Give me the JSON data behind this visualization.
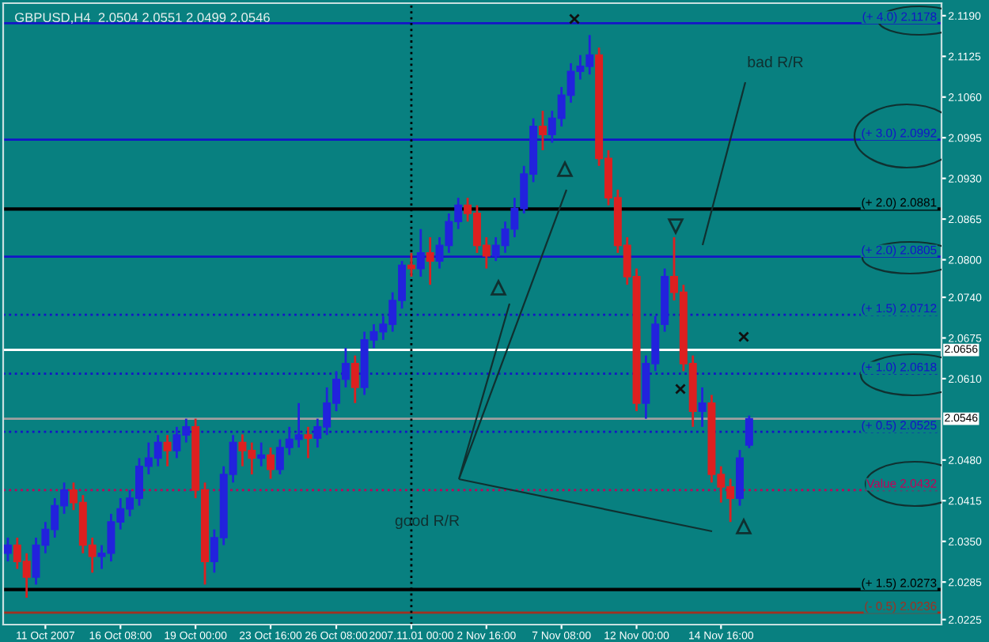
{
  "chart_data": {
    "type": "candlestick",
    "title": "GBPUSD,H4  2.0504 2.0551 2.0499 2.0546",
    "categories": [
      null,
      null,
      null,
      null,
      "11 Oct 2007",
      null,
      null,
      null,
      null,
      null,
      null,
      null,
      "16 Oct 08:00",
      null,
      null,
      null,
      null,
      null,
      null,
      null,
      "19 Oct 00:00",
      null,
      null,
      null,
      null,
      null,
      null,
      null,
      "23 Oct 16:00",
      null,
      null,
      null,
      null,
      null,
      null,
      "26 Oct 08:00",
      null,
      null,
      null,
      null,
      null,
      null,
      null,
      "2007.11.01 00:00",
      null,
      null,
      null,
      null,
      null,
      null,
      null,
      "2 Nov 16:00",
      null,
      null,
      null,
      null,
      null,
      null,
      null,
      "7 Nov 08:00",
      null,
      null,
      null,
      null,
      null,
      null,
      null,
      "12 Nov 00:00",
      null,
      null,
      null,
      null,
      null,
      null,
      null,
      null,
      "14 Nov 16:00",
      null,
      null,
      null,
      null,
      null,
      null,
      null,
      null,
      null,
      null,
      null,
      null,
      null,
      null,
      null,
      null,
      null,
      null,
      null,
      null,
      null,
      null,
      null
    ],
    "ohlc": [
      [
        2.0331,
        2.0356,
        2.0318,
        2.0344
      ],
      [
        2.0344,
        2.0356,
        2.0306,
        2.0318
      ],
      [
        2.0318,
        2.0331,
        2.026,
        2.0293
      ],
      [
        2.0293,
        2.0356,
        2.0281,
        2.0344
      ],
      [
        2.0344,
        2.0381,
        2.0331,
        2.0369
      ],
      [
        2.0369,
        2.0419,
        2.0356,
        2.0407
      ],
      [
        2.0407,
        2.0444,
        2.0394,
        2.0432
      ],
      [
        2.0432,
        2.0444,
        2.04,
        2.0412
      ],
      [
        2.0412,
        2.0424,
        2.0331,
        2.0344
      ],
      [
        2.0344,
        2.0356,
        2.03,
        2.0326
      ],
      [
        2.0326,
        2.0344,
        2.0306,
        2.0331
      ],
      [
        2.0331,
        2.0394,
        2.0318,
        2.0381
      ],
      [
        2.0381,
        2.0419,
        2.0369,
        2.0402
      ],
      [
        2.0402,
        2.0432,
        2.039,
        2.0419
      ],
      [
        2.0419,
        2.0483,
        2.0407,
        2.047
      ],
      [
        2.047,
        2.0508,
        2.0457,
        2.0483
      ],
      [
        2.0483,
        2.052,
        2.047,
        2.0508
      ],
      [
        2.0508,
        2.052,
        2.047,
        2.0495
      ],
      [
        2.0495,
        2.0533,
        2.0483,
        2.052
      ],
      [
        2.052,
        2.0546,
        2.0508,
        2.0533
      ],
      [
        2.0533,
        2.0546,
        2.0419,
        2.0432
      ],
      [
        2.0432,
        2.0444,
        2.0281,
        2.0318
      ],
      [
        2.0318,
        2.0369,
        2.03,
        2.0356
      ],
      [
        2.0356,
        2.047,
        2.0344,
        2.0457
      ],
      [
        2.0457,
        2.052,
        2.0444,
        2.0508
      ],
      [
        2.0508,
        2.0521,
        2.047,
        2.0495
      ],
      [
        2.0495,
        2.0508,
        2.0457,
        2.0483
      ],
      [
        2.0483,
        2.0508,
        2.047,
        2.0488
      ],
      [
        2.0488,
        2.05,
        2.045,
        2.0465
      ],
      [
        2.0465,
        2.0513,
        2.0457,
        2.05
      ],
      [
        2.05,
        2.0533,
        2.0488,
        2.0513
      ],
      [
        2.0513,
        2.0571,
        2.05,
        2.052
      ],
      [
        2.052,
        2.0533,
        2.0483,
        2.0515
      ],
      [
        2.0515,
        2.0546,
        2.05,
        2.0533
      ],
      [
        2.0533,
        2.0596,
        2.052,
        2.0571
      ],
      [
        2.0571,
        2.0622,
        2.0558,
        2.0609
      ],
      [
        2.0609,
        2.0659,
        2.0596,
        2.0634
      ],
      [
        2.0634,
        2.0647,
        2.0571,
        2.0596
      ],
      [
        2.0596,
        2.0685,
        2.0584,
        2.0672
      ],
      [
        2.0672,
        2.0697,
        2.0659,
        2.0685
      ],
      [
        2.0685,
        2.071,
        2.0672,
        2.0697
      ],
      [
        2.0697,
        2.0748,
        2.0685,
        2.0735
      ],
      [
        2.0735,
        2.0798,
        2.0722,
        2.0791
      ],
      [
        2.0791,
        2.0811,
        2.0773,
        2.0786
      ],
      [
        2.0786,
        2.0849,
        2.0773,
        2.0811
      ],
      [
        2.0811,
        2.0836,
        2.076,
        2.0798
      ],
      [
        2.0798,
        2.0836,
        2.0786,
        2.0823
      ],
      [
        2.0823,
        2.0874,
        2.0811,
        2.0861
      ],
      [
        2.0861,
        2.0899,
        2.0849,
        2.0887
      ],
      [
        2.0887,
        2.0899,
        2.0861,
        2.0874
      ],
      [
        2.0874,
        2.0887,
        2.0811,
        2.0823
      ],
      [
        2.0823,
        2.0836,
        2.0786,
        2.0806
      ],
      [
        2.0806,
        2.0836,
        2.0798,
        2.0823
      ],
      [
        2.0823,
        2.0861,
        2.0811,
        2.0849
      ],
      [
        2.0849,
        2.0899,
        2.0836,
        2.0882
      ],
      [
        2.0882,
        2.095,
        2.0874,
        2.0937
      ],
      [
        2.0937,
        2.1026,
        2.0924,
        2.1013
      ],
      [
        2.1013,
        2.1038,
        2.0975,
        2.1
      ],
      [
        2.1,
        2.1038,
        2.0987,
        2.1026
      ],
      [
        2.1026,
        2.1076,
        2.1013,
        2.1063
      ],
      [
        2.1063,
        2.1114,
        2.1051,
        2.1101
      ],
      [
        2.1101,
        2.1127,
        2.1088,
        2.1109
      ],
      [
        2.1109,
        2.1159,
        2.1096,
        2.1127
      ],
      [
        2.1127,
        2.1139,
        2.095,
        2.0962
      ],
      [
        2.0962,
        2.0975,
        2.0887,
        2.0899
      ],
      [
        2.0899,
        2.0912,
        2.0811,
        2.0823
      ],
      [
        2.0823,
        2.0836,
        2.076,
        2.0773
      ],
      [
        2.0773,
        2.0786,
        2.0558,
        2.0571
      ],
      [
        2.0571,
        2.0647,
        2.0546,
        2.0634
      ],
      [
        2.0634,
        2.071,
        2.0622,
        2.0697
      ],
      [
        2.0697,
        2.0786,
        2.0685,
        2.0773
      ],
      [
        2.0773,
        2.0836,
        2.0735,
        2.0748
      ],
      [
        2.0748,
        2.076,
        2.0622,
        2.0634
      ],
      [
        2.0634,
        2.0647,
        2.0533,
        2.0558
      ],
      [
        2.0558,
        2.0596,
        2.0533,
        2.0571
      ],
      [
        2.0571,
        2.0584,
        2.0444,
        2.0457
      ],
      [
        2.0457,
        2.047,
        2.0412,
        2.0437
      ],
      [
        2.0437,
        2.045,
        2.0381,
        2.0419
      ],
      [
        2.0419,
        2.0496,
        2.0407,
        2.0483
      ],
      [
        2.0504,
        2.0551,
        2.0499,
        2.0546
      ],
      null,
      null,
      null,
      null,
      null,
      null,
      null,
      null,
      null,
      null,
      null,
      null,
      null,
      null,
      null,
      null,
      null,
      null,
      null,
      null
    ],
    "colors": [
      "#2222dd",
      "#dd2020",
      "#dd2020",
      "#2222dd",
      "#2222dd",
      "#2222dd",
      "#2222dd",
      "#dd2020",
      "#dd2020",
      "#dd2020",
      "#2222dd",
      "#2222dd",
      "#2222dd",
      "#2222dd",
      "#2222dd",
      "#2222dd",
      "#2222dd",
      "#dd2020",
      "#2222dd",
      "#2222dd",
      "#dd2020",
      "#dd2020",
      "#2222dd",
      "#2222dd",
      "#2222dd",
      "#dd2020",
      "#dd2020",
      "#2222dd",
      "#dd2020",
      "#2222dd",
      "#2222dd",
      "#2222dd",
      "#dd2020",
      "#2222dd",
      "#2222dd",
      "#2222dd",
      "#2222dd",
      "#dd2020",
      "#2222dd",
      "#2222dd",
      "#2222dd",
      "#2222dd",
      "#2222dd",
      "#dd2020",
      "#2222dd",
      "#dd2020",
      "#2222dd",
      "#2222dd",
      "#2222dd",
      "#dd2020",
      "#dd2020",
      "#dd2020",
      "#2222dd",
      "#2222dd",
      "#2222dd",
      "#2222dd",
      "#2222dd",
      "#dd2020",
      "#2222dd",
      "#2222dd",
      "#2222dd",
      "#2222dd",
      "#2222dd",
      "#dd2020",
      "#dd2020",
      "#dd2020",
      "#dd2020",
      "#dd2020",
      "#2222dd",
      "#2222dd",
      "#2222dd",
      "#dd2020",
      "#dd2020",
      "#dd2020",
      "#2222dd",
      "#dd2020",
      "#dd2020",
      "#dd2020",
      "#2222dd",
      "#2222dd",
      null,
      null,
      null,
      null,
      null,
      null,
      null,
      null,
      null,
      null,
      null,
      null,
      null,
      null,
      null,
      null,
      null,
      null,
      null,
      null
    ],
    "ylim": [
      2.0217,
      2.121
    ],
    "yticks": [
      {
        "value": 2.119,
        "label": "2.1190"
      },
      {
        "value": 2.1125,
        "label": "2.1125"
      },
      {
        "value": 2.106,
        "label": "2.1060"
      },
      {
        "value": 2.0995,
        "label": "2.0995"
      },
      {
        "value": 2.093,
        "label": "2.0930"
      },
      {
        "value": 2.0865,
        "label": "2.0865"
      },
      {
        "value": 2.08,
        "label": "2.0800"
      },
      {
        "value": 2.074,
        "label": "2.0740"
      },
      {
        "value": 2.0675,
        "label": "2.0675"
      },
      {
        "value": 2.061,
        "label": "2.0610"
      },
      {
        "value": 2.048,
        "label": "2.0480"
      },
      {
        "value": 2.0415,
        "label": "2.0415"
      },
      {
        "value": 2.035,
        "label": "2.0350"
      },
      {
        "value": 2.0285,
        "label": "2.0285"
      },
      {
        "value": 2.0225,
        "label": "2.0225"
      }
    ],
    "ref_lines": [
      {
        "axis": "y",
        "value": 2.1178,
        "label": "(+ 4.0) 2.1178",
        "color": "#1414c8",
        "line_style": "solid"
      },
      {
        "axis": "y",
        "value": 2.0992,
        "label": "(+ 3.0) 2.0992",
        "color": "#1414c8",
        "line_style": "solid"
      },
      {
        "axis": "y",
        "value": 2.0881,
        "label": "(+ 2.0) 2.0881",
        "color": "#000000",
        "line_style": "solid"
      },
      {
        "axis": "y",
        "value": 2.0805,
        "label": "(+ 2.0) 2.0805",
        "color": "#1414c8",
        "line_style": "solid"
      },
      {
        "axis": "y",
        "value": 2.0712,
        "label": "(+ 1.5) 2.0712",
        "color": "#1414c8",
        "line_style": "dotted"
      },
      {
        "axis": "y",
        "value": 2.0656,
        "label": "2.0656",
        "color": "#ffffff",
        "line_style": "solid"
      },
      {
        "axis": "y",
        "value": 2.0618,
        "label": "(+ 1.0) 2.0618",
        "color": "#1414c8",
        "line_style": "dotted"
      },
      {
        "axis": "y",
        "value": 2.0546,
        "label": "2.0546",
        "color": "#a0a0a0",
        "line_style": "solid"
      },
      {
        "axis": "y",
        "value": 2.0525,
        "label": "(+ 0.5) 2.0525",
        "color": "#1414c8",
        "line_style": "dotted"
      },
      {
        "axis": "y",
        "value": 2.0432,
        "label": "Value 2.0432",
        "color": "#c0005a",
        "line_style": "dotted"
      },
      {
        "axis": "y",
        "value": 2.0273,
        "label": "(+ 1.5) 2.0273",
        "color": "#000000",
        "line_style": "solid"
      },
      {
        "axis": "y",
        "value": 2.0236,
        "label": "(- 0.5) 2.0236",
        "color": "#a03020",
        "line_style": "solid"
      },
      {
        "axis": "x",
        "value": "2007.11.01 00:00",
        "label": null,
        "color": "#000000",
        "line_style": "dotted"
      }
    ],
    "annotations": [
      "good R/R",
      "bad R/R"
    ],
    "grid": false,
    "legend": false
  }
}
